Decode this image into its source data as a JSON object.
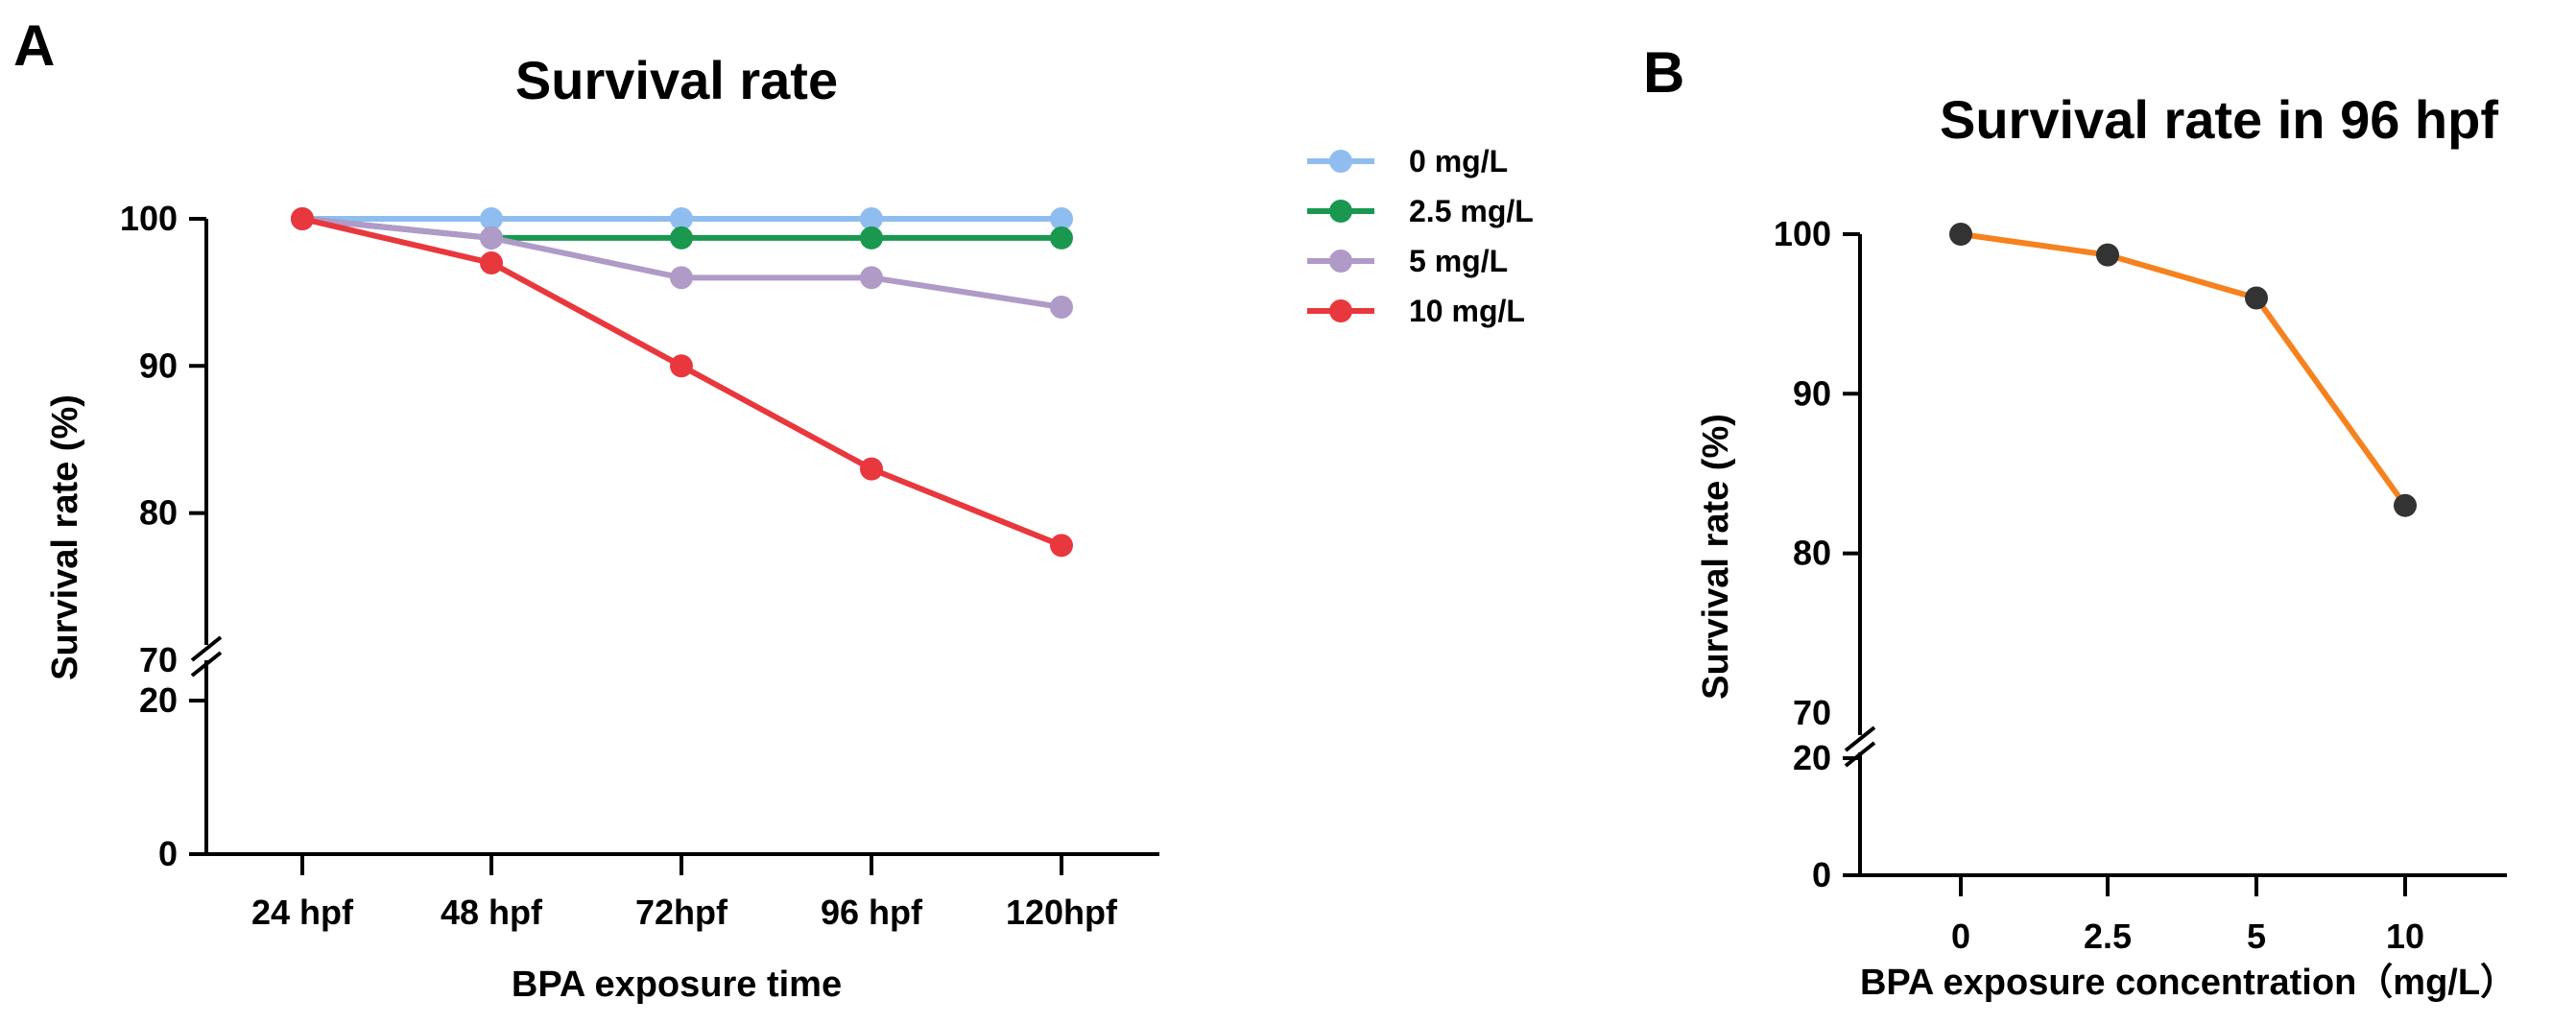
{
  "chart_data": [
    {
      "panel": "A",
      "type": "line",
      "title": "Survival rate",
      "xlabel": "BPA exposure time",
      "ylabel": "Survival rate (%)",
      "categories": [
        "24 hpf",
        "48 hpf",
        "72hpf",
        "96 hpf",
        "120hpf"
      ],
      "y_ticks_lower": [
        0,
        20
      ],
      "y_ticks_upper": [
        70,
        80,
        90,
        100
      ],
      "y_break": [
        20,
        70
      ],
      "series": [
        {
          "name": "0 mg/L",
          "color": "#8fbdf0",
          "values": [
            100,
            100,
            100,
            100,
            100
          ]
        },
        {
          "name": "2.5 mg/L",
          "color": "#1a9850",
          "values": [
            100,
            98.7,
            98.7,
            98.7,
            98.7
          ]
        },
        {
          "name": "5 mg/L",
          "color": "#b09ac7",
          "values": [
            100,
            98.7,
            96,
            96,
            94
          ]
        },
        {
          "name": "10 mg/L",
          "color": "#e8383d",
          "values": [
            100,
            97,
            90,
            83,
            77.8
          ]
        }
      ],
      "legend": "top-right"
    },
    {
      "panel": "B",
      "type": "line",
      "title": "Survival rate in 96 hpf",
      "xlabel": "BPA exposure concentration（mg/L）",
      "ylabel": "Survival rate (%)",
      "categories": [
        "0",
        "2.5",
        "5",
        "10"
      ],
      "y_ticks_lower": [
        0,
        20
      ],
      "y_ticks_upper": [
        70,
        80,
        90,
        100
      ],
      "y_break": [
        20,
        70
      ],
      "series": [
        {
          "name": "96 hpf",
          "color": "#f5821f",
          "marker_color": "#333333",
          "values": [
            100,
            98.7,
            96,
            83
          ]
        }
      ]
    }
  ]
}
